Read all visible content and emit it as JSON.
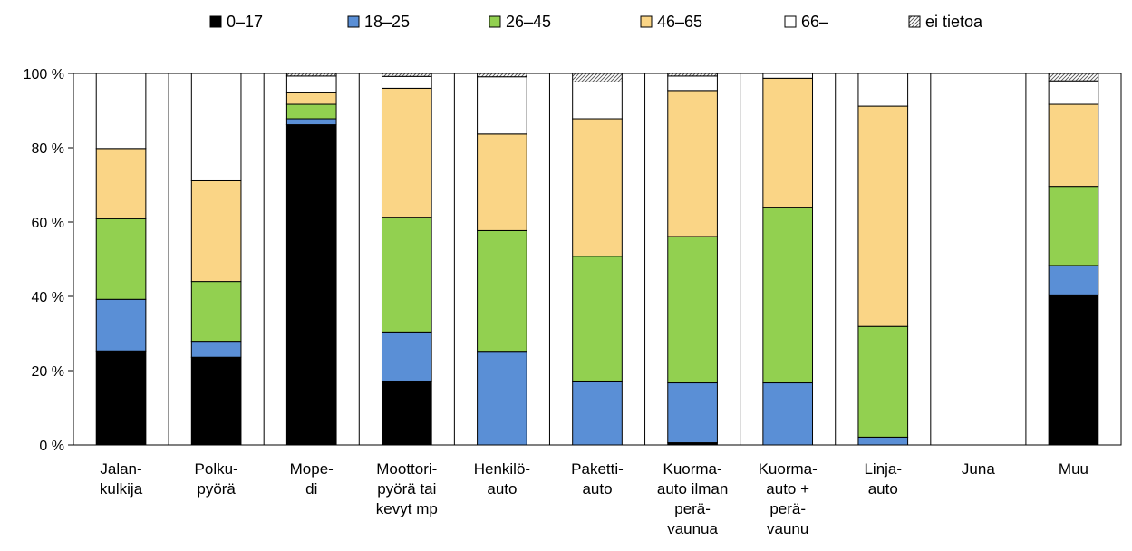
{
  "chart_data": {
    "type": "bar",
    "stacked": true,
    "normalized": true,
    "categories": [
      "Jalan-\nkulkija",
      "Polku-\npyörä",
      "Mope-\ndi",
      "Moottori-\npyörä tai\nkevyt mp",
      "Henkilö-\nauto",
      "Paketti-\nauto",
      "Kuorma-\nauto ilman\nperä-\nvaunua",
      "Kuorma-\nauto +\nperä-\nvaunu",
      "Linja-\nauto",
      "Juna",
      "Muu"
    ],
    "series": [
      {
        "name": "0–17",
        "color": "#000000",
        "pattern": "solid",
        "values": [
          25.3,
          23.6,
          86.2,
          17.2,
          0,
          0,
          0.6,
          0,
          0,
          0,
          40.4
        ]
      },
      {
        "name": "18–25",
        "color": "#5a8fd6",
        "pattern": "solid",
        "values": [
          13.9,
          4.3,
          1.6,
          13.2,
          25.2,
          17.2,
          16.1,
          16.7,
          2.1,
          0,
          7.9
        ]
      },
      {
        "name": "26–45",
        "color": "#92d050",
        "pattern": "solid",
        "values": [
          21.7,
          16.1,
          3.9,
          30.9,
          32.5,
          33.6,
          39.4,
          47.3,
          29.8,
          0,
          21.3
        ]
      },
      {
        "name": "46–65",
        "color": "#fad586",
        "pattern": "solid",
        "values": [
          18.9,
          27.1,
          3.1,
          34.7,
          26.0,
          37.0,
          39.3,
          34.7,
          59.3,
          0,
          22.1
        ]
      },
      {
        "name": "66–",
        "color": "#ffffff",
        "pattern": "solid",
        "values": [
          20.2,
          28.9,
          4.5,
          3.2,
          15.4,
          9.9,
          3.9,
          1.3,
          8.8,
          0,
          6.3
        ]
      },
      {
        "name": "ei tietoa",
        "color": "#ffffff",
        "pattern": "hatch",
        "values": [
          0,
          0,
          0.7,
          0.8,
          0.9,
          2.3,
          0.7,
          0,
          0,
          0,
          2.0
        ]
      }
    ],
    "y_ticks": [
      "0 %",
      "20 %",
      "40 %",
      "60 %",
      "80 %",
      "100 %"
    ],
    "ylim": [
      0,
      100
    ],
    "grid": false,
    "legend_position": "top",
    "title": "",
    "xlabel": "",
    "ylabel": ""
  }
}
